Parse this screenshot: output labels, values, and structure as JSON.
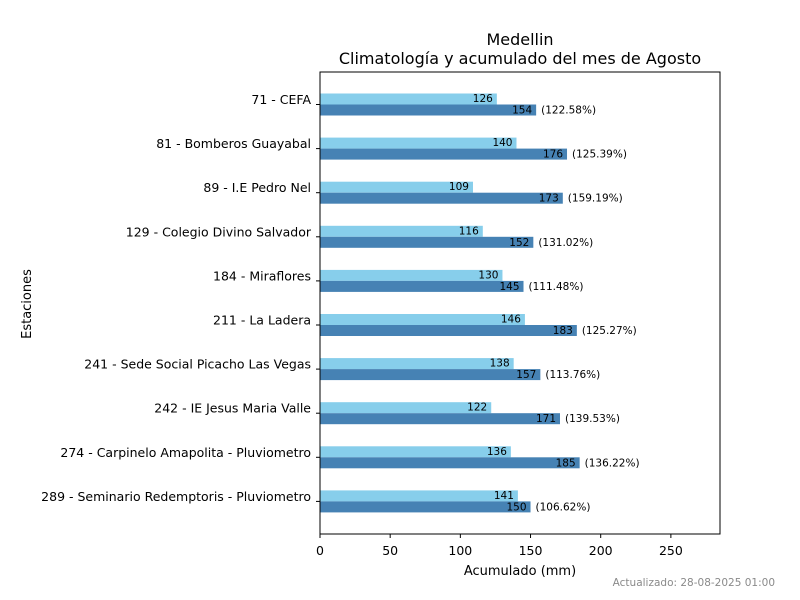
{
  "chart_data": {
    "type": "bar",
    "orientation": "horizontal",
    "title": "Medellin",
    "subtitle": "Climatología y acumulado del mes de Agosto",
    "xlabel": "Acumulado (mm)",
    "ylabel": "Estaciones",
    "xlim": [
      0,
      285
    ],
    "xticks": [
      0,
      50,
      100,
      150,
      200,
      250
    ],
    "grid": false,
    "categories": [
      "71 - CEFA",
      "81 - Bomberos Guayabal",
      "89 - I.E Pedro Nel",
      "129 - Colegio Divino Salvador",
      "184 - Miraflores",
      "211 - La Ladera",
      "241 - Sede Social Picacho Las Vegas",
      "242 - IE Jesus Maria Valle",
      "274 - Carpinelo Amapolita - Pluviometro",
      "289 - Seminario Redemptoris - Pluviometro"
    ],
    "series": [
      {
        "values": [
          126,
          140,
          109,
          116,
          130,
          146,
          138,
          122,
          136,
          141
        ],
        "color": "#87ceeb"
      },
      {
        "values": [
          154,
          176,
          173,
          152,
          145,
          183,
          157,
          171,
          185,
          150
        ],
        "color": "#4682b4"
      }
    ],
    "percentages": [
      "(122.58%)",
      "(125.39%)",
      "(159.19%)",
      "(131.02%)",
      "(111.48%)",
      "(125.27%)",
      "(113.76%)",
      "(139.53%)",
      "(136.22%)",
      "(106.62%)"
    ]
  },
  "footer": "Actualizado: 28-08-2025 01:00"
}
